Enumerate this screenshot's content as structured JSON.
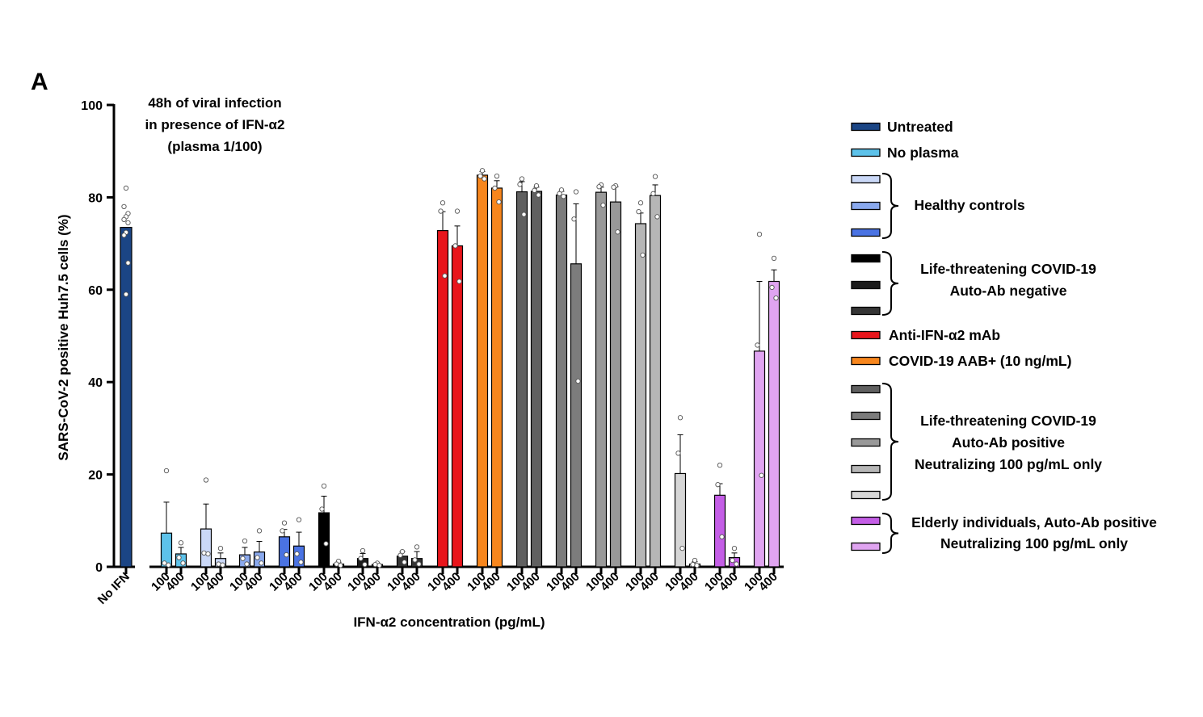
{
  "chart_data": {
    "type": "bar",
    "panel_label": "A",
    "annotation": [
      "48h of viral infection",
      "in presence of IFN-α2",
      "(plasma 1/100)"
    ],
    "xlabel": "IFN-α2 concentration (pg/mL)",
    "ylabel": "SARS-CoV-2 positive Huh7.5 cells (%)",
    "ylim": [
      0,
      100
    ],
    "yticks": [
      0,
      20,
      40,
      60,
      80,
      100
    ],
    "grid": false,
    "legend_position": "right",
    "bars": [
      {
        "label": "No IFN",
        "group": "Untreated",
        "color": "#1b4585",
        "value": 73.5,
        "error": 0,
        "points": [
          82.0,
          78.0,
          76.5,
          75.8,
          75.2,
          74.5,
          72.4,
          71.8,
          65.8,
          59.0
        ]
      },
      {
        "label": "100",
        "group": "No plasma",
        "color": "#5dc2ea",
        "value": 7.3,
        "error": 6.7,
        "points": [
          20.8,
          0.8,
          0.4
        ]
      },
      {
        "label": "400",
        "group": "No plasma",
        "color": "#5dc2ea",
        "value": 2.8,
        "error": 1.4,
        "points": [
          5.2,
          2.0,
          0.8
        ]
      },
      {
        "label": "100",
        "group": "Healthy controls",
        "color": "#cad8f7",
        "value": 8.2,
        "error": 5.4,
        "points": [
          18.8,
          3.0,
          2.8
        ]
      },
      {
        "label": "400",
        "group": "Healthy controls",
        "color": "#cad8f7",
        "value": 1.8,
        "error": 1.2,
        "points": [
          4.0,
          0.6,
          0.4
        ]
      },
      {
        "label": "100",
        "group": "Healthy controls",
        "color": "#8aa9ee",
        "value": 2.6,
        "error": 1.6,
        "points": [
          5.6,
          1.8,
          0.6
        ]
      },
      {
        "label": "400",
        "group": "Healthy controls",
        "color": "#8aa9ee",
        "value": 3.2,
        "error": 2.3,
        "points": [
          7.8,
          2.0,
          0.8
        ]
      },
      {
        "label": "100",
        "group": "Healthy controls",
        "color": "#4a73e3",
        "value": 6.5,
        "error": 1.6,
        "points": [
          9.5,
          7.8,
          2.6
        ]
      },
      {
        "label": "400",
        "group": "Healthy controls",
        "color": "#4a73e3",
        "value": 4.5,
        "error": 3.0,
        "points": [
          10.2,
          2.8,
          1.0
        ]
      },
      {
        "label": "100",
        "group": "Life-threatening COVID-19 Auto-Ab negative",
        "color": "#000000",
        "value": 11.7,
        "error": 3.6,
        "points": [
          17.5,
          12.5,
          5.0
        ]
      },
      {
        "label": "400",
        "group": "Life-threatening COVID-19 Auto-Ab negative",
        "color": "#000000",
        "value": 0.6,
        "error": 0.4,
        "points": [
          1.2,
          0.6,
          0.3
        ]
      },
      {
        "label": "100",
        "group": "Life-threatening COVID-19 Auto-Ab negative",
        "color": "#1c1c1c",
        "value": 1.8,
        "error": 1.1,
        "points": [
          3.5,
          1.8,
          0.5
        ]
      },
      {
        "label": "400",
        "group": "Life-threatening COVID-19 Auto-Ab negative",
        "color": "#1c1c1c",
        "value": 0.5,
        "error": 0.3,
        "points": [
          0.8,
          0.5,
          0.3
        ]
      },
      {
        "label": "100",
        "group": "Life-threatening COVID-19 Auto-Ab negative",
        "color": "#353535",
        "value": 2.3,
        "error": 1.0,
        "points": [
          3.3,
          2.5,
          1.0
        ]
      },
      {
        "label": "400",
        "group": "Life-threatening COVID-19 Auto-Ab negative",
        "color": "#353535",
        "value": 1.8,
        "error": 1.5,
        "points": [
          4.3,
          1.5,
          0.6
        ]
      },
      {
        "label": "100",
        "group": "Anti-IFN-α2 mAb",
        "color": "#e8151b",
        "value": 72.8,
        "error": 4.1,
        "points": [
          78.8,
          77.0,
          63.0
        ]
      },
      {
        "label": "400",
        "group": "Anti-IFN-α2 mAb",
        "color": "#e8151b",
        "value": 69.5,
        "error": 4.3,
        "points": [
          77.0,
          69.5,
          61.8
        ]
      },
      {
        "label": "100",
        "group": "COVID-19 AAB+ (10 ng/mL)",
        "color": "#f7861d",
        "value": 84.8,
        "error": 0.8,
        "points": [
          85.8,
          84.6,
          84.0
        ]
      },
      {
        "label": "400",
        "group": "COVID-19 AAB+ (10 ng/mL)",
        "color": "#f7861d",
        "value": 82.0,
        "error": 1.6,
        "points": [
          84.6,
          82.0,
          79.0
        ]
      },
      {
        "label": "100",
        "group": "Life-threatening COVID-19 Auto-Ab positive Neutralizing 100 pg/mL only",
        "color": "#606060",
        "value": 81.2,
        "error": 2.2,
        "points": [
          84.0,
          82.8,
          76.3
        ]
      },
      {
        "label": "400",
        "group": "Life-threatening COVID-19 Auto-Ab positive Neutralizing 100 pg/mL only",
        "color": "#606060",
        "value": 81.3,
        "error": 0.9,
        "points": [
          82.5,
          81.5,
          80.5
        ]
      },
      {
        "label": "100",
        "group": "Life-threatening COVID-19 Auto-Ab positive Neutralizing 100 pg/mL only",
        "color": "#7c7c7c",
        "value": 80.5,
        "error": 0.8,
        "points": [
          81.6,
          80.8,
          80.2
        ]
      },
      {
        "label": "400",
        "group": "Life-threatening COVID-19 Auto-Ab positive Neutralizing 100 pg/mL only",
        "color": "#7c7c7c",
        "value": 65.6,
        "error": 13.0,
        "points": [
          81.2,
          75.3,
          40.2
        ]
      },
      {
        "label": "100",
        "group": "Life-threatening COVID-19 Auto-Ab positive Neutralizing 100 pg/mL only",
        "color": "#999999",
        "value": 81.1,
        "error": 1.1,
        "points": [
          82.7,
          82.3,
          78.3
        ]
      },
      {
        "label": "400",
        "group": "Life-threatening COVID-19 Auto-Ab positive Neutralizing 100 pg/mL only",
        "color": "#999999",
        "value": 79.0,
        "error": 3.3,
        "points": [
          82.5,
          82.2,
          72.5
        ]
      },
      {
        "label": "100",
        "group": "Life-threatening COVID-19 Auto-Ab positive Neutralizing 100 pg/mL only",
        "color": "#b6b6b6",
        "value": 74.3,
        "error": 2.3,
        "points": [
          78.8,
          76.9,
          67.5
        ]
      },
      {
        "label": "400",
        "group": "Life-threatening COVID-19 Auto-Ab positive Neutralizing 100 pg/mL only",
        "color": "#b6b6b6",
        "value": 80.4,
        "error": 2.3,
        "points": [
          84.5,
          80.8,
          75.8
        ]
      },
      {
        "label": "100",
        "group": "Life-threatening COVID-19 Auto-Ab positive Neutralizing 100 pg/mL only",
        "color": "#d6d6d6",
        "value": 20.2,
        "error": 8.4,
        "points": [
          32.3,
          24.6,
          4.0
        ]
      },
      {
        "label": "400",
        "group": "Life-threatening COVID-19 Auto-Ab positive Neutralizing 100 pg/mL only",
        "color": "#d6d6d6",
        "value": 0.6,
        "error": 0.5,
        "points": [
          1.4,
          0.5,
          0.3
        ]
      },
      {
        "label": "100",
        "group": "Elderly individuals, Auto-Ab positive Neutralizing 100 pg/mL only",
        "color": "#c45ee6",
        "value": 15.5,
        "error": 2.5,
        "points": [
          22.0,
          17.8,
          6.5
        ]
      },
      {
        "label": "400",
        "group": "Elderly individuals, Auto-Ab positive Neutralizing 100 pg/mL only",
        "color": "#c45ee6",
        "value": 2.0,
        "error": 1.0,
        "points": [
          4.0,
          1.4,
          0.6
        ]
      },
      {
        "label": "100",
        "group": "Elderly individuals, Auto-Ab positive Neutralizing 100 pg/mL only",
        "color": "#e0a4f1",
        "value": 46.7,
        "error": 15.1,
        "points": [
          72.0,
          48.0,
          19.8
        ]
      },
      {
        "label": "400",
        "group": "Elderly individuals, Auto-Ab positive Neutralizing 100 pg/mL only",
        "color": "#e0a4f1",
        "value": 61.8,
        "error": 2.5,
        "points": [
          66.8,
          60.5,
          58.2
        ]
      }
    ],
    "legend": [
      {
        "label": "Untreated",
        "colors": [
          "#1b4585"
        ]
      },
      {
        "label": "No plasma",
        "colors": [
          "#5dc2ea"
        ]
      },
      {
        "label": "Healthy controls",
        "colors": [
          "#cad8f7",
          "#8aa9ee",
          "#4a73e3"
        ]
      },
      {
        "label": "Life-threatening COVID-19\nAuto-Ab negative",
        "colors": [
          "#000000",
          "#1c1c1c",
          "#353535"
        ]
      },
      {
        "label": "Anti-IFN-α2 mAb",
        "colors": [
          "#e8151b"
        ]
      },
      {
        "label": "COVID-19 AAB+ (10 ng/mL)",
        "colors": [
          "#f7861d"
        ]
      },
      {
        "label": "Life-threatening COVID-19\nAuto-Ab positive\nNeutralizing 100 pg/mL only",
        "colors": [
          "#606060",
          "#7c7c7c",
          "#999999",
          "#b6b6b6",
          "#d6d6d6"
        ]
      },
      {
        "label": "Elderly individuals, Auto-Ab positive\nNeutralizing 100 pg/mL only",
        "colors": [
          "#c45ee6",
          "#e0a4f1"
        ]
      }
    ]
  }
}
